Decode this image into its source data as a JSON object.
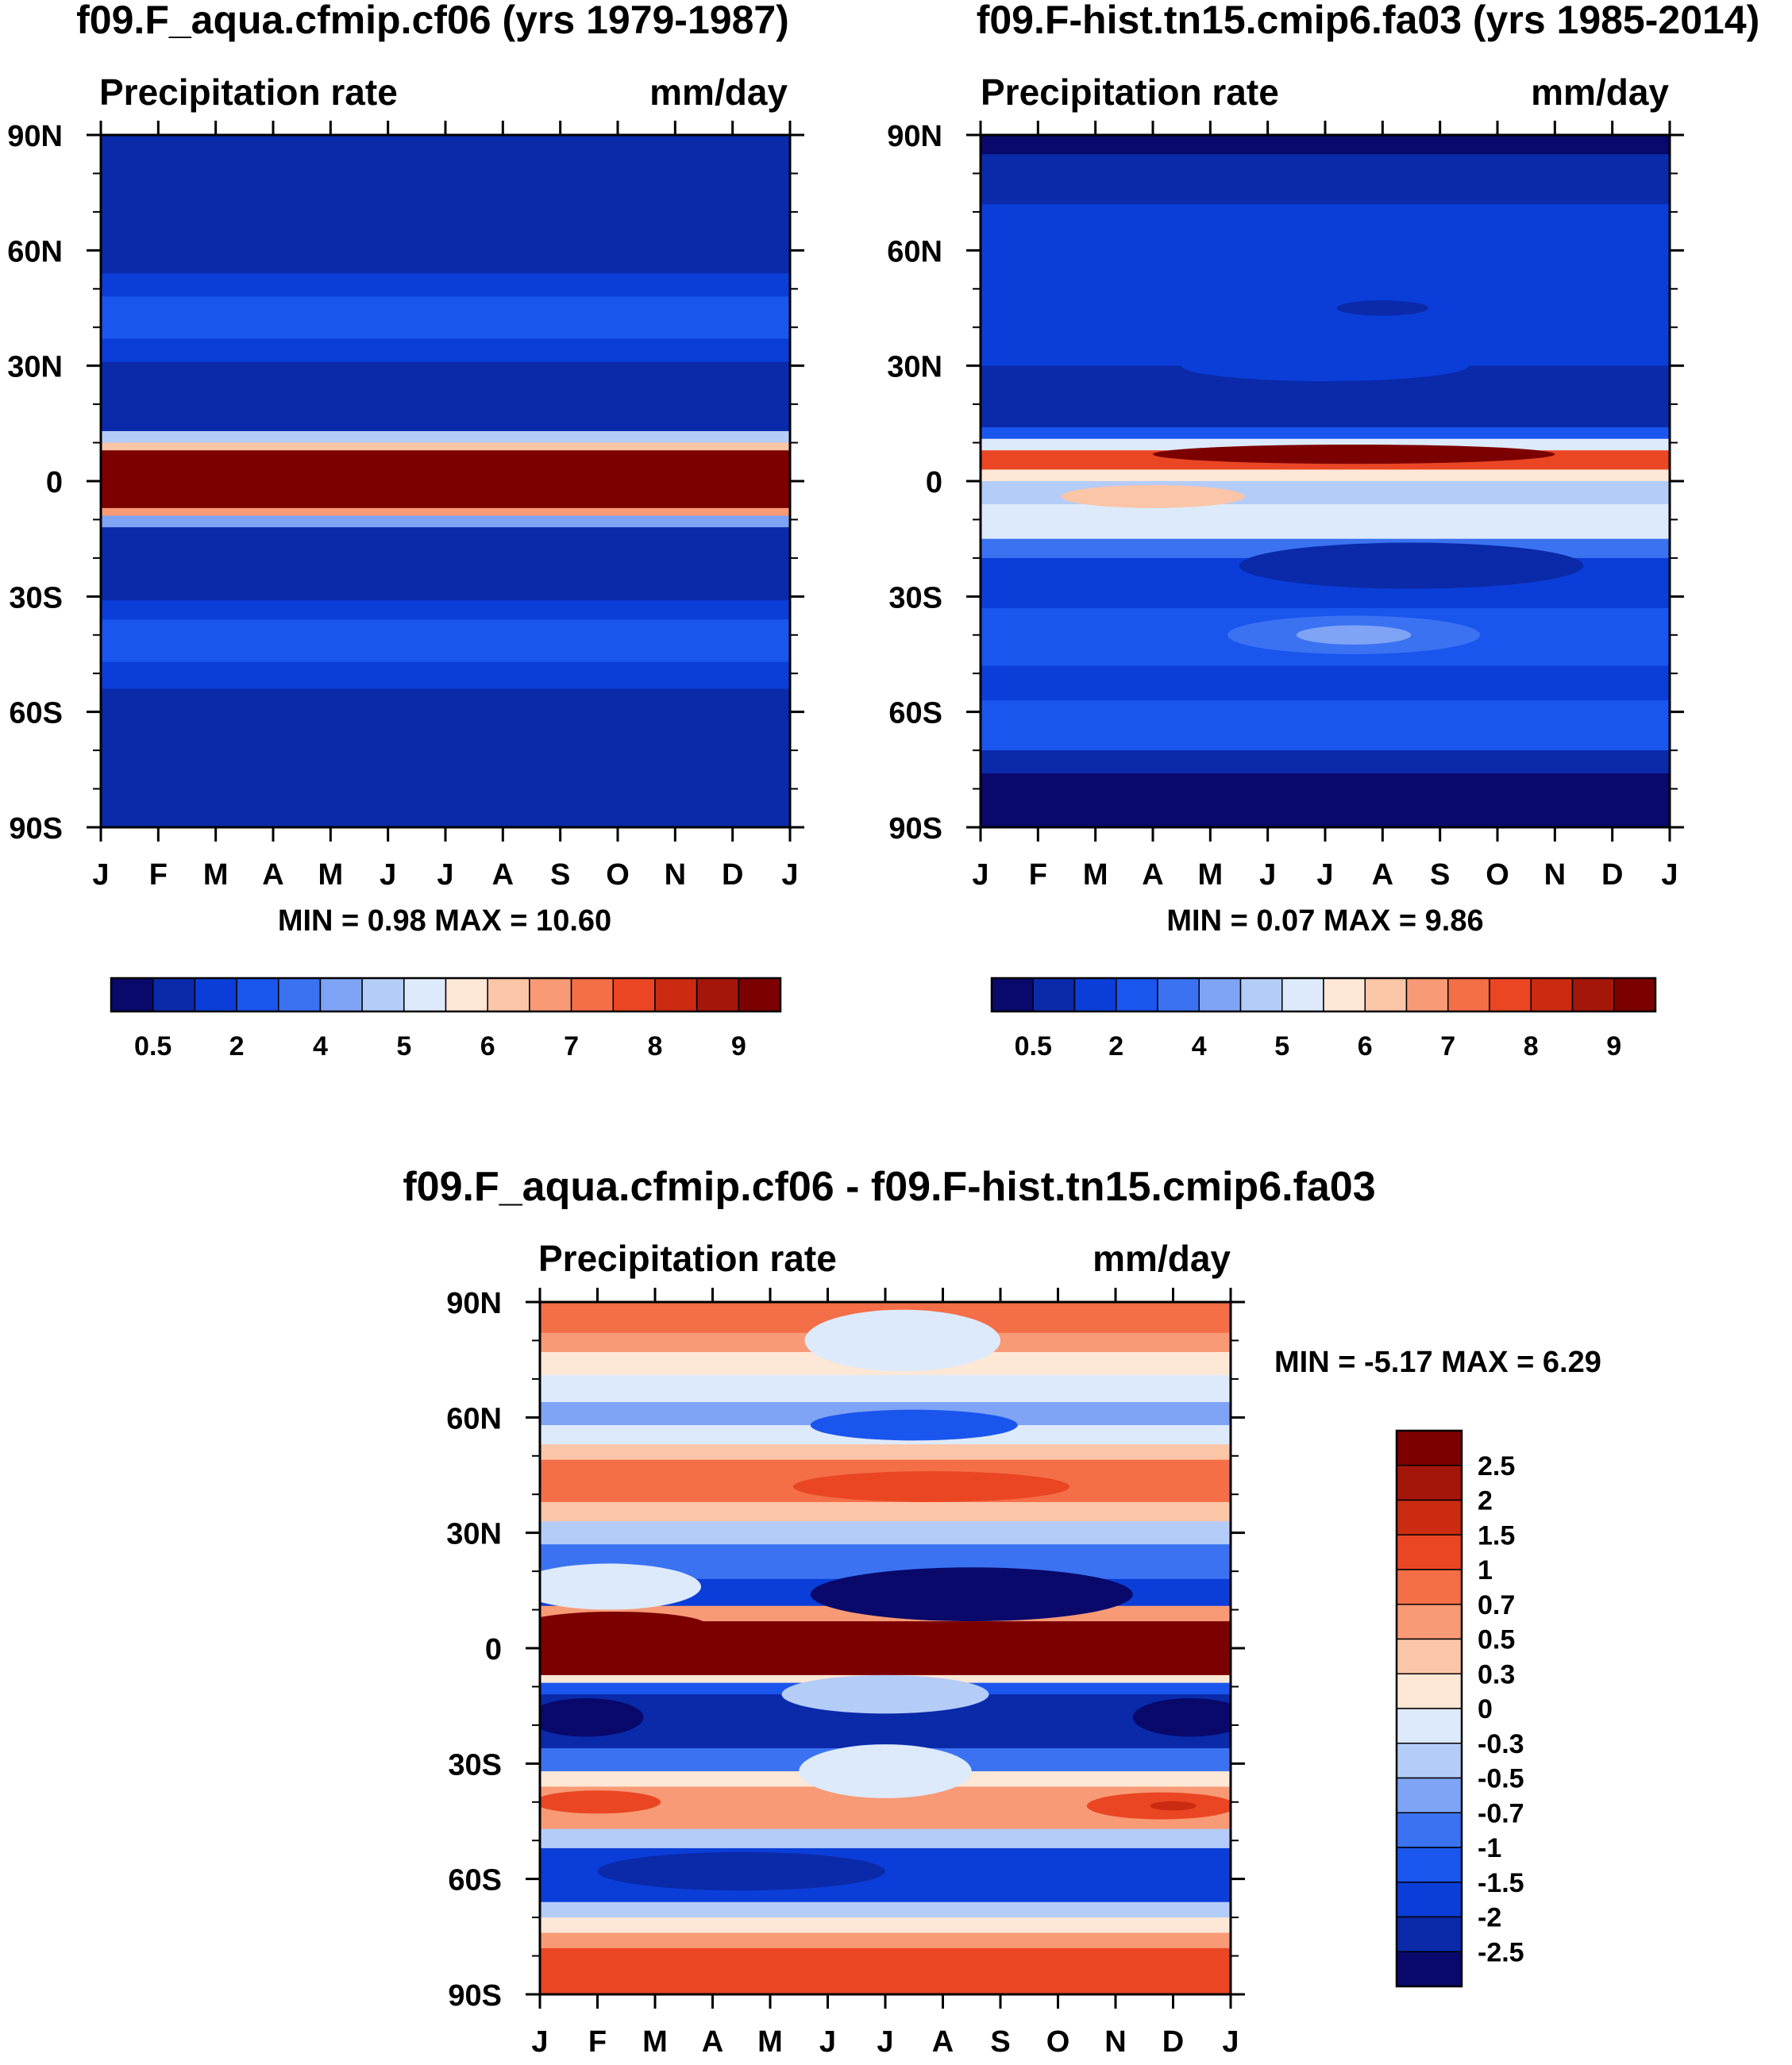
{
  "colors": {
    "seq": [
      "#08096b",
      "#0a2aaa",
      "#0b3ed8",
      "#1a55ee",
      "#3a72f2",
      "#7fa3f5",
      "#b4ccf8",
      "#ddeafb",
      "#fde7d6",
      "#fbc5a8",
      "#f89a76",
      "#f46e47",
      "#ea4623",
      "#cb2b10",
      "#a5160a",
      "#7c0000"
    ],
    "diff": [
      "#7c0000",
      "#a5160a",
      "#cb2b10",
      "#ea4623",
      "#f46e47",
      "#f89a76",
      "#fbc5a8",
      "#fde7d6",
      "#ddeafb",
      "#b4ccf8",
      "#7fa3f5",
      "#3a72f2",
      "#1a55ee",
      "#0b3ed8",
      "#0a2aaa",
      "#08096b"
    ]
  },
  "chart_data": [
    {
      "type": "heatmap",
      "id": "panel-aqua",
      "title": "f09.F_aqua.cfmip.cf06 (yrs 1979-1987)",
      "left_label": "Precipitation rate",
      "right_label": "mm/day",
      "x_tick_labels": [
        "J",
        "F",
        "M",
        "A",
        "M",
        "J",
        "J",
        "A",
        "S",
        "O",
        "N",
        "D",
        "J"
      ],
      "y_tick_labels": [
        "90N",
        "60N",
        "30N",
        "0",
        "30S",
        "60S",
        "90S"
      ],
      "y_ticks": [
        90,
        60,
        30,
        0,
        -30,
        -60,
        -90
      ],
      "ylim": [
        -90,
        90
      ],
      "xlim": [
        0,
        12
      ],
      "minmax": "MIN =   0.98 MAX =  10.60",
      "bands": [
        {
          "from": 90,
          "to": 54,
          "level": 1
        },
        {
          "from": 54,
          "to": 48,
          "level": 2
        },
        {
          "from": 48,
          "to": 37,
          "level": 3
        },
        {
          "from": 37,
          "to": 31,
          "level": 2
        },
        {
          "from": 31,
          "to": 13,
          "level": 1
        },
        {
          "from": 13,
          "to": 10,
          "level": 6
        },
        {
          "from": 10,
          "to": 8,
          "level": 9
        },
        {
          "from": 8,
          "to": -7,
          "level": 15
        },
        {
          "from": -7,
          "to": -9,
          "level": 10
        },
        {
          "from": -9,
          "to": -12,
          "level": 5
        },
        {
          "from": -12,
          "to": -31,
          "level": 1
        },
        {
          "from": -31,
          "to": -36,
          "level": 2
        },
        {
          "from": -36,
          "to": -47,
          "level": 3
        },
        {
          "from": -47,
          "to": -54,
          "level": 2
        },
        {
          "from": -54,
          "to": -90,
          "level": 1
        }
      ],
      "blobs": [],
      "colorbar_labels": [
        "0.5",
        "2",
        "4",
        "5",
        "6",
        "7",
        "8",
        "9"
      ]
    },
    {
      "type": "heatmap",
      "id": "panel-hist",
      "title": "f09.F-hist.tn15.cmip6.fa03 (yrs 1985-2014)",
      "left_label": "Precipitation rate",
      "right_label": "mm/day",
      "x_tick_labels": [
        "J",
        "F",
        "M",
        "A",
        "M",
        "J",
        "J",
        "A",
        "S",
        "O",
        "N",
        "D",
        "J"
      ],
      "y_tick_labels": [
        "90N",
        "60N",
        "30N",
        "0",
        "30S",
        "60S",
        "90S"
      ],
      "y_ticks": [
        90,
        60,
        30,
        0,
        -30,
        -60,
        -90
      ],
      "ylim": [
        -90,
        90
      ],
      "xlim": [
        0,
        12
      ],
      "minmax": "MIN =   0.07 MAX =   9.86",
      "bands": [
        {
          "from": 90,
          "to": 85,
          "level": 0
        },
        {
          "from": 85,
          "to": 72,
          "level": 1
        },
        {
          "from": 72,
          "to": 30,
          "level": 2
        },
        {
          "from": 30,
          "to": 14,
          "level": 1
        },
        {
          "from": 14,
          "to": 11,
          "level": 3
        },
        {
          "from": 11,
          "to": 8,
          "level": 7
        },
        {
          "from": 8,
          "to": 3,
          "level": 12
        },
        {
          "from": 3,
          "to": 0,
          "level": 8
        },
        {
          "from": 0,
          "to": -6,
          "level": 6
        },
        {
          "from": -6,
          "to": -15,
          "level": 7
        },
        {
          "from": -15,
          "to": -20,
          "level": 4
        },
        {
          "from": -20,
          "to": -33,
          "level": 2
        },
        {
          "from": -33,
          "to": -48,
          "level": 3
        },
        {
          "from": -48,
          "to": -57,
          "level": 2
        },
        {
          "from": -57,
          "to": -70,
          "level": 3
        },
        {
          "from": -70,
          "to": -76,
          "level": 1
        },
        {
          "from": -76,
          "to": -90,
          "level": 0
        }
      ],
      "blobs": [
        {
          "x": 6.5,
          "lat": 7,
          "rx": 3.5,
          "rlat": 2.5,
          "level": 15
        },
        {
          "x": 3.0,
          "lat": -4,
          "rx": 1.6,
          "rlat": 3,
          "level": 9
        },
        {
          "x": 7.5,
          "lat": -22,
          "rx": 3.0,
          "rlat": 6,
          "level": 1
        },
        {
          "x": 6.5,
          "lat": -40,
          "rx": 2.2,
          "rlat": 5,
          "level": 4
        },
        {
          "x": 6.5,
          "lat": -40,
          "rx": 1.0,
          "rlat": 2.5,
          "level": 5
        },
        {
          "x": 7.0,
          "lat": 45,
          "rx": 0.8,
          "rlat": 2,
          "level": 1
        },
        {
          "x": 6.0,
          "lat": 30,
          "rx": 2.5,
          "rlat": 4,
          "level": 2
        }
      ],
      "colorbar_labels": [
        "0.5",
        "2",
        "4",
        "5",
        "6",
        "7",
        "8",
        "9"
      ]
    },
    {
      "type": "heatmap",
      "id": "panel-diff",
      "title": "f09.F_aqua.cfmip.cf06 - f09.F-hist.tn15.cmip6.fa03",
      "left_label": "Precipitation rate",
      "right_label": "mm/day",
      "x_tick_labels": [
        "J",
        "F",
        "M",
        "A",
        "M",
        "J",
        "J",
        "A",
        "S",
        "O",
        "N",
        "D",
        "J"
      ],
      "y_tick_labels": [
        "90N",
        "60N",
        "30N",
        "0",
        "30S",
        "60S",
        "90S"
      ],
      "y_ticks": [
        90,
        60,
        30,
        0,
        -30,
        -60,
        -90
      ],
      "ylim": [
        -90,
        90
      ],
      "xlim": [
        0,
        12
      ],
      "minmax": "MIN =  -5.17 MAX =   6.29",
      "bands": [
        {
          "from": 90,
          "to": 82,
          "level": 4
        },
        {
          "from": 82,
          "to": 77,
          "level": 5
        },
        {
          "from": 77,
          "to": 71,
          "level": 7
        },
        {
          "from": 71,
          "to": 64,
          "level": 8
        },
        {
          "from": 64,
          "to": 58,
          "level": 10
        },
        {
          "from": 58,
          "to": 53,
          "level": 8
        },
        {
          "from": 53,
          "to": 49,
          "level": 6
        },
        {
          "from": 49,
          "to": 38,
          "level": 4
        },
        {
          "from": 38,
          "to": 33,
          "level": 6
        },
        {
          "from": 33,
          "to": 27,
          "level": 9
        },
        {
          "from": 27,
          "to": 18,
          "level": 11
        },
        {
          "from": 18,
          "to": 11,
          "level": 13
        },
        {
          "from": 11,
          "to": 7,
          "level": 5
        },
        {
          "from": 7,
          "to": -7,
          "level": 0
        },
        {
          "from": -7,
          "to": -9,
          "level": 7
        },
        {
          "from": -9,
          "to": -12,
          "level": 12
        },
        {
          "from": -12,
          "to": -26,
          "level": 14
        },
        {
          "from": -26,
          "to": -32,
          "level": 11
        },
        {
          "from": -32,
          "to": -36,
          "level": 7
        },
        {
          "from": -36,
          "to": -47,
          "level": 5
        },
        {
          "from": -47,
          "to": -52,
          "level": 9
        },
        {
          "from": -52,
          "to": -66,
          "level": 13
        },
        {
          "from": -66,
          "to": -70,
          "level": 9
        },
        {
          "from": -70,
          "to": -74,
          "level": 7
        },
        {
          "from": -74,
          "to": -78,
          "level": 5
        },
        {
          "from": -78,
          "to": -90,
          "level": 3
        }
      ],
      "blobs": [
        {
          "x": 1.2,
          "lat": 16,
          "rx": 1.6,
          "rlat": 6,
          "level": 8
        },
        {
          "x": 1.3,
          "lat": 6,
          "rx": 1.6,
          "rlat": 3.5,
          "level": 0
        },
        {
          "x": 7.5,
          "lat": 14,
          "rx": 2.8,
          "rlat": 7,
          "level": 15
        },
        {
          "x": 6.8,
          "lat": 42,
          "rx": 2.4,
          "rlat": 4,
          "level": 3
        },
        {
          "x": 6.3,
          "lat": 80,
          "rx": 1.7,
          "rlat": 8,
          "level": 8
        },
        {
          "x": 6.5,
          "lat": 58,
          "rx": 1.8,
          "rlat": 4,
          "level": 12
        },
        {
          "x": 0.8,
          "lat": -18,
          "rx": 1.0,
          "rlat": 5,
          "level": 15
        },
        {
          "x": 11.3,
          "lat": -18,
          "rx": 1.0,
          "rlat": 5,
          "level": 15
        },
        {
          "x": 6.0,
          "lat": -12,
          "rx": 1.8,
          "rlat": 5,
          "level": 9
        },
        {
          "x": 6.0,
          "lat": -32,
          "rx": 1.5,
          "rlat": 7,
          "level": 8
        },
        {
          "x": 1.0,
          "lat": -40,
          "rx": 1.1,
          "rlat": 3,
          "level": 3
        },
        {
          "x": 10.8,
          "lat": -41,
          "rx": 1.3,
          "rlat": 3.5,
          "level": 3
        },
        {
          "x": 11.0,
          "lat": -41,
          "rx": 0.4,
          "rlat": 1.2,
          "level": 2
        },
        {
          "x": 3.5,
          "lat": -58,
          "rx": 2.5,
          "rlat": 5,
          "level": 14
        }
      ],
      "colorbar_labels": [
        "2.5",
        "2",
        "1.5",
        "1",
        "0.7",
        "0.5",
        "0.3",
        "0",
        "-0.3",
        "-0.5",
        "-0.7",
        "-1",
        "-1.5",
        "-2",
        "-2.5"
      ]
    }
  ]
}
